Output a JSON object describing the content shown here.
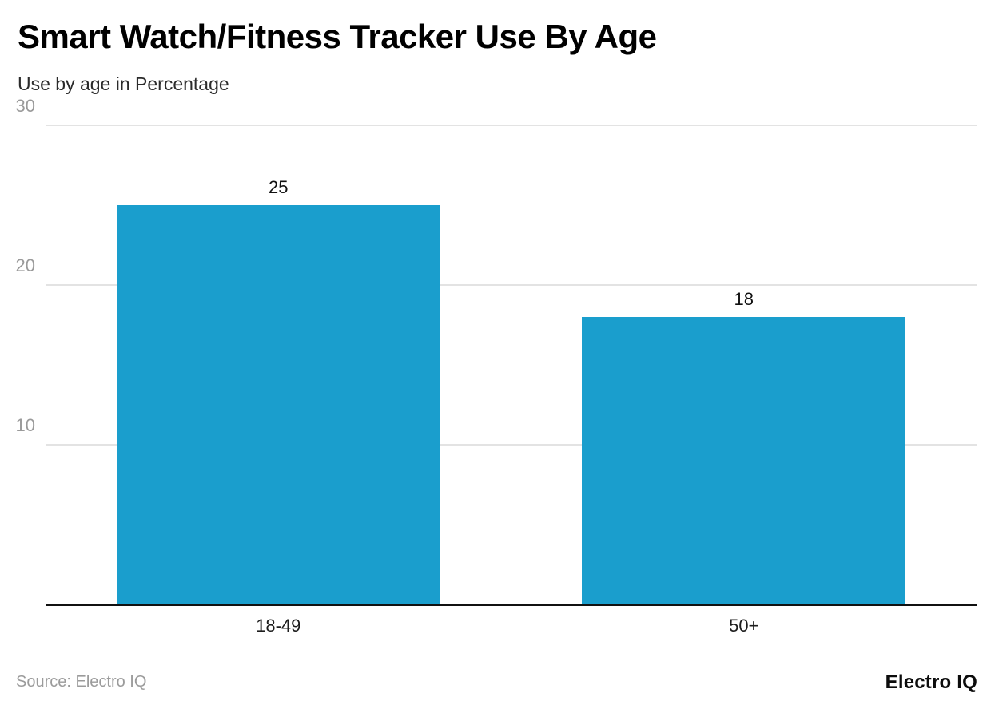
{
  "header": {
    "title": "Smart Watch/Fitness Tracker Use By Age",
    "subtitle": "Use by age in Percentage"
  },
  "footer": {
    "source": "Source: Electro IQ",
    "logo_text": "Electro IQ"
  },
  "colors": {
    "bar": "#1a9ecd",
    "gridline": "#e3e3e3",
    "axis": "#111111",
    "tick_label": "#9a9a9a",
    "source_text": "#9b9b9b"
  },
  "chart_data": {
    "type": "bar",
    "categories": [
      "18-49",
      "50+"
    ],
    "values": [
      25,
      18
    ],
    "title": "Smart Watch/Fitness Tracker Use By Age",
    "subtitle": "Use by age in Percentage",
    "xlabel": "",
    "ylabel": "",
    "ylim": [
      0,
      30
    ],
    "yticks": [
      10,
      20,
      30
    ],
    "grid": true,
    "legend": "none",
    "bar_color": "#1a9ecd",
    "value_label_position": "above"
  }
}
